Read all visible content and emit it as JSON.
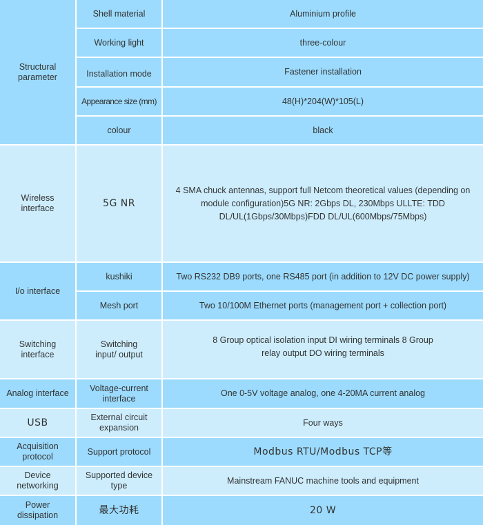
{
  "colors": {
    "dark_row": "#9cdbfd",
    "light_row": "#cdedfd",
    "border": "#ffffff",
    "text": "#333333"
  },
  "rows": {
    "structural": {
      "category": "Structural parameter",
      "items": [
        {
          "label": "Shell material",
          "value": "Aluminium profile"
        },
        {
          "label": "Working light",
          "value": "three-colour"
        },
        {
          "label": "Installation mode",
          "value": "Fastener installation"
        },
        {
          "label": "Appearance size (mm)",
          "value": "48(H)*204(W)*105(L)"
        },
        {
          "label": "colour",
          "value": "black"
        }
      ]
    },
    "wireless": {
      "category": "Wireless interface",
      "label": "5G NR",
      "value": "4 SMA chuck antennas, support full Netcom theoretical values (depending on module configuration)5G NR: 2Gbps DL, 230Mbps ULLTE: TDD DL/UL(1Gbps/30Mbps)FDD DL/UL(600Mbps/75Mbps)"
    },
    "io": {
      "category": "I/o interface",
      "items": [
        {
          "label": "kushiki",
          "value": "Two RS232 DB9 ports, one RS485 port (in addition to 12V DC power supply)"
        },
        {
          "label": "Mesh port",
          "value": "Two 10/100M Ethernet ports (management port + collection port)"
        }
      ]
    },
    "switching": {
      "category": "Switching interface",
      "label": "Switching input/ output",
      "value": "8 Group optical isolation input DI wiring terminals 8 Group relay output DO wiring terminals"
    },
    "analog": {
      "category": "Analog interface",
      "label": "Voltage-current interface",
      "value": "One 0-5V voltage analog, one 4-20MA current analog"
    },
    "usb": {
      "category": "USB",
      "label": "External circuit expansion",
      "value": "Four ways"
    },
    "acquisition": {
      "category": "Acquisition protocol",
      "label": "Support protocol",
      "value": "Modbus RTU/Modbus TCP等"
    },
    "device": {
      "category": "Device networking",
      "label": "Supported device type",
      "value": "Mainstream FANUC machine tools and equipment"
    },
    "power": {
      "category": "Power dissipation",
      "label": "最大功耗",
      "value": "20 W"
    }
  }
}
